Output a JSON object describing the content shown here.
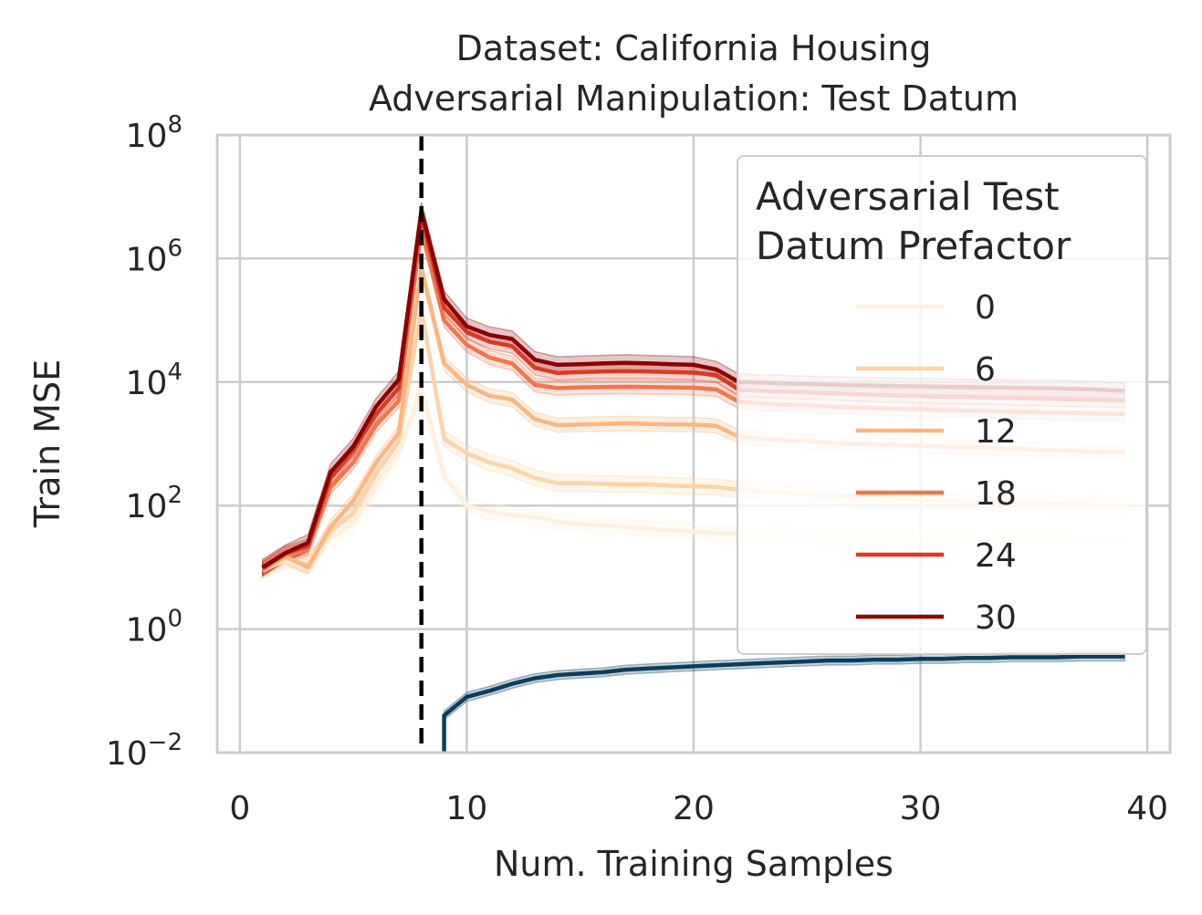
{
  "chart_data": {
    "type": "line",
    "title": "Dataset: California Housing",
    "subtitle": "Adversarial Manipulation: Test Datum",
    "xlabel": "Num. Training Samples",
    "ylabel": "Train MSE",
    "xlim": [
      -1,
      41
    ],
    "ylim": [
      0.01,
      100000000
    ],
    "yscale": "log",
    "grid": true,
    "xticks": [
      {
        "v": 0,
        "label": "0"
      },
      {
        "v": 10,
        "label": "10"
      },
      {
        "v": 20,
        "label": "20"
      },
      {
        "v": 30,
        "label": "30"
      },
      {
        "v": 40,
        "label": "40"
      }
    ],
    "yticks": [
      {
        "exp": -2,
        "base": "10",
        "sup": "−2"
      },
      {
        "exp": 0,
        "base": "10",
        "sup": "0"
      },
      {
        "exp": 2,
        "base": "10",
        "sup": "2"
      },
      {
        "exp": 4,
        "base": "10",
        "sup": "4"
      },
      {
        "exp": 6,
        "base": "10",
        "sup": "6"
      },
      {
        "exp": 8,
        "base": "10",
        "sup": "8"
      }
    ],
    "vline": {
      "x": 8,
      "style": "dashed",
      "color": "#000000"
    },
    "legend": {
      "title_line1": "Adversarial Test",
      "title_line2": "Datum Prefactor",
      "placement": "upper-right"
    },
    "x": [
      1,
      2,
      3,
      4,
      5,
      6,
      7,
      8,
      9,
      10,
      11,
      12,
      13,
      14,
      15,
      16,
      17,
      18,
      19,
      20,
      21,
      22,
      23,
      24,
      25,
      26,
      27,
      28,
      29,
      30,
      31,
      32,
      33,
      34,
      35,
      36,
      37,
      38,
      39
    ],
    "series": [
      {
        "name": "0",
        "color": "#fff0e0",
        "band": 0.35,
        "values": [
          9,
          13,
          12,
          30,
          50,
          200,
          700,
          8000,
          300,
          100,
          80,
          70,
          65,
          55,
          50,
          48,
          45,
          42,
          40,
          38,
          36,
          35,
          34,
          33,
          32,
          31,
          31,
          30,
          30,
          29,
          29,
          28,
          28,
          27,
          27,
          27,
          26,
          26,
          26
        ]
      },
      {
        "name": "6",
        "color": "#fdd4a8",
        "band": 0.35,
        "values": [
          9,
          14,
          11,
          38,
          75,
          320,
          1100,
          150000,
          1200,
          700,
          500,
          400,
          280,
          230,
          230,
          225,
          220,
          220,
          210,
          205,
          200,
          180,
          170,
          160,
          150,
          145,
          140,
          135,
          130,
          125,
          120,
          115,
          112,
          110,
          108,
          105,
          103,
          100,
          100
        ]
      },
      {
        "name": "12",
        "color": "#fdb680",
        "band": 0.3,
        "values": [
          9,
          15,
          10,
          45,
          120,
          500,
          1500,
          700000,
          20000,
          9000,
          6000,
          5200,
          2500,
          2000,
          2050,
          2100,
          2150,
          2100,
          2050,
          2050,
          1950,
          1300,
          1200,
          1150,
          1100,
          1050,
          1000,
          980,
          960,
          930,
          900,
          880,
          860,
          840,
          810,
          780,
          760,
          740,
          720
        ]
      },
      {
        "name": "18",
        "color": "#f3754e",
        "band": 0.3,
        "values": [
          9.5,
          16,
          20,
          200,
          500,
          2000,
          5000,
          3000000,
          100000,
          40000,
          25000,
          20000,
          9000,
          8000,
          8200,
          8300,
          8400,
          8300,
          8200,
          8100,
          7600,
          4800,
          4500,
          4300,
          4200,
          4000,
          3900,
          3800,
          3700,
          3600,
          3500,
          3450,
          3400,
          3300,
          3250,
          3200,
          3150,
          3100,
          3050
        ]
      },
      {
        "name": "24",
        "color": "#d93a24",
        "band": 0.3,
        "values": [
          9.5,
          17,
          22,
          280,
          800,
          3000,
          8000,
          5000000,
          160000,
          65000,
          45000,
          38000,
          17000,
          14000,
          14500,
          14800,
          15000,
          14800,
          14500,
          14200,
          13000,
          7500,
          7200,
          7000,
          6800,
          6600,
          6400,
          6200,
          6000,
          5900,
          5800,
          5700,
          5600,
          5500,
          5400,
          5300,
          5200,
          5100,
          5000
        ]
      },
      {
        "name": "30",
        "color": "#8b0000",
        "band": 0.35,
        "values": [
          10,
          17,
          25,
          350,
          900,
          4000,
          11000,
          6000000,
          220000,
          80000,
          58000,
          50000,
          23000,
          19000,
          19500,
          20000,
          20500,
          20000,
          19500,
          19000,
          16000,
          10000,
          9800,
          9500,
          9300,
          9100,
          8900,
          8800,
          8600,
          8500,
          8400,
          8300,
          8200,
          8100,
          8000,
          7900,
          7700,
          7500,
          7200
        ]
      }
    ],
    "test_series": {
      "color": "#0b3d5c",
      "band": 0.18,
      "x": [
        9,
        10,
        11,
        12,
        13,
        14,
        15,
        16,
        17,
        18,
        19,
        20,
        21,
        22,
        23,
        24,
        25,
        26,
        27,
        28,
        29,
        30,
        31,
        32,
        33,
        34,
        35,
        36,
        37,
        38,
        39
      ],
      "values": [
        0.04,
        0.08,
        0.1,
        0.13,
        0.16,
        0.18,
        0.19,
        0.2,
        0.22,
        0.23,
        0.24,
        0.25,
        0.26,
        0.27,
        0.28,
        0.29,
        0.3,
        0.31,
        0.31,
        0.32,
        0.32,
        0.33,
        0.33,
        0.34,
        0.34,
        0.35,
        0.35,
        0.35,
        0.36,
        0.36,
        0.36
      ]
    }
  }
}
